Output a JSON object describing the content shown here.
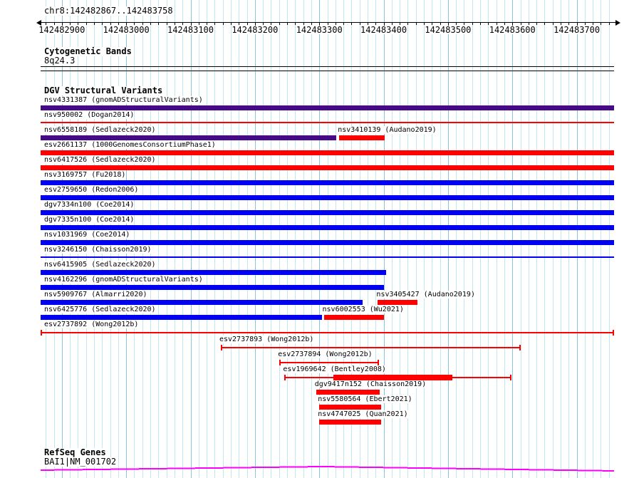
{
  "header": {
    "region_title": "chr8:142482867..142483758"
  },
  "ruler": {
    "region_start": 142482867,
    "region_end": 142483758,
    "major_tick_start": 142482900,
    "major_tick_interval": 100,
    "minor_ticks_per_major": 8,
    "tick_labels": [
      "142482900",
      "142483000",
      "142483100",
      "142483200",
      "142483300",
      "142483400",
      "142483500",
      "142483600",
      "142483700"
    ]
  },
  "cytobands": {
    "section_title": "Cytogenetic Bands",
    "band_name": "8q24.3"
  },
  "dgv": {
    "section_title": "DGV Structural Variants",
    "rows": [
      [
        {
          "name": "nsv4331387",
          "source": "gnomADStructuralVariants",
          "start": 142482867,
          "end": 142483758,
          "color": "purple",
          "style": "thick"
        }
      ],
      [
        {
          "name": "nsv950002",
          "source": "Dogan2014",
          "start": 142482867,
          "end": 142483758,
          "color": "red",
          "style": "thin"
        }
      ],
      [
        {
          "name": "nsv6558189",
          "source": "Sedlazeck2020",
          "start": 142482867,
          "end": 142483326,
          "color": "purple",
          "style": "thick"
        },
        {
          "name": "nsv3410139",
          "source": "Audano2019",
          "start": 142483331,
          "end": 142483402,
          "color": "red",
          "style": "thick"
        }
      ],
      [
        {
          "name": "esv2661137",
          "source": "1000GenomesConsortiumPhase1",
          "start": 142482867,
          "end": 142483758,
          "color": "red",
          "style": "thick"
        }
      ],
      [
        {
          "name": "nsv6417526",
          "source": "Sedlazeck2020",
          "start": 142482867,
          "end": 142483758,
          "color": "red",
          "style": "thick"
        }
      ],
      [
        {
          "name": "nsv3169757",
          "source": "Fu2018",
          "start": 142482867,
          "end": 142483758,
          "color": "blue",
          "style": "thick"
        }
      ],
      [
        {
          "name": "esv2759650",
          "source": "Redon2006",
          "start": 142482867,
          "end": 142483758,
          "color": "blue",
          "style": "thick"
        }
      ],
      [
        {
          "name": "dgv7334n100",
          "source": "Coe2014",
          "start": 142482867,
          "end": 142483758,
          "color": "blue",
          "style": "thick"
        }
      ],
      [
        {
          "name": "dgv7335n100",
          "source": "Coe2014",
          "start": 142482867,
          "end": 142483758,
          "color": "blue",
          "style": "thick"
        }
      ],
      [
        {
          "name": "nsv1031969",
          "source": "Coe2014",
          "start": 142482867,
          "end": 142483758,
          "color": "blue",
          "style": "thick"
        }
      ],
      [
        {
          "name": "nsv3246150",
          "source": "Chaisson2019",
          "start": 142482867,
          "end": 142483758,
          "color": "blue",
          "style": "thin"
        }
      ],
      [
        {
          "name": "nsv6415905",
          "source": "Sedlazeck2020",
          "start": 142482867,
          "end": 142483404,
          "color": "blue",
          "style": "thick"
        }
      ],
      [
        {
          "name": "nsv4162296",
          "source": "gnomADStructuralVariants",
          "start": 142482867,
          "end": 142483400,
          "color": "blue",
          "style": "thick"
        }
      ],
      [
        {
          "name": "nsv5909767",
          "source": "Almarri2020",
          "start": 142482867,
          "end": 142483367,
          "color": "blue",
          "style": "thick"
        },
        {
          "name": "nsv3405427",
          "source": "Audano2019",
          "start": 142483391,
          "end": 142483453,
          "color": "red",
          "style": "thick"
        }
      ],
      [
        {
          "name": "nsv6425776",
          "source": "Sedlazeck2020",
          "start": 142482867,
          "end": 142483304,
          "color": "blue",
          "style": "thick"
        },
        {
          "name": "nsv6002553",
          "source": "Wu2021",
          "start": 142483307,
          "end": 142483400,
          "color": "red",
          "style": "thick"
        }
      ],
      [
        {
          "name": "esv2737892",
          "source": "Wong2012b",
          "start": 142482867,
          "end": 142483758,
          "color": "red",
          "style": "range"
        }
      ],
      [
        {
          "name": "esv2737893",
          "source": "Wong2012b",
          "start": 142483147,
          "end": 142483613,
          "color": "red",
          "style": "range"
        }
      ],
      [
        {
          "name": "esv2737894",
          "source": "Wong2012b",
          "start": 142483238,
          "end": 142483393,
          "color": "red",
          "style": "range"
        }
      ],
      [
        {
          "name": "esv1969642",
          "source": "Bentley2008",
          "start": 142483246,
          "end": 142483599,
          "color": "red",
          "style": "range",
          "box": [
            142483322,
            142483507
          ]
        }
      ],
      [
        {
          "name": "dgv9417n152",
          "source": "Chaisson2019",
          "start": 142483295,
          "end": 142483394,
          "color": "red",
          "style": "thick"
        }
      ],
      [
        {
          "name": "nsv5580564",
          "source": "Ebert2021",
          "start": 142483300,
          "end": 142483396,
          "color": "red",
          "style": "thick"
        }
      ],
      [
        {
          "name": "nsv4747025",
          "source": "Quan2021",
          "start": 142483300,
          "end": 142483396,
          "color": "red",
          "style": "thick"
        }
      ]
    ]
  },
  "refseq": {
    "section_title": "RefSeq Genes",
    "gene_label": "BAI1|NM_001702"
  },
  "colors": {
    "red": "#ff0000",
    "blue": "#0000f2",
    "purple": "#470a87",
    "gene_magenta": "#ff00ff",
    "grid_minor": "#bfe9f1",
    "grid_major": "#85c6e0"
  }
}
